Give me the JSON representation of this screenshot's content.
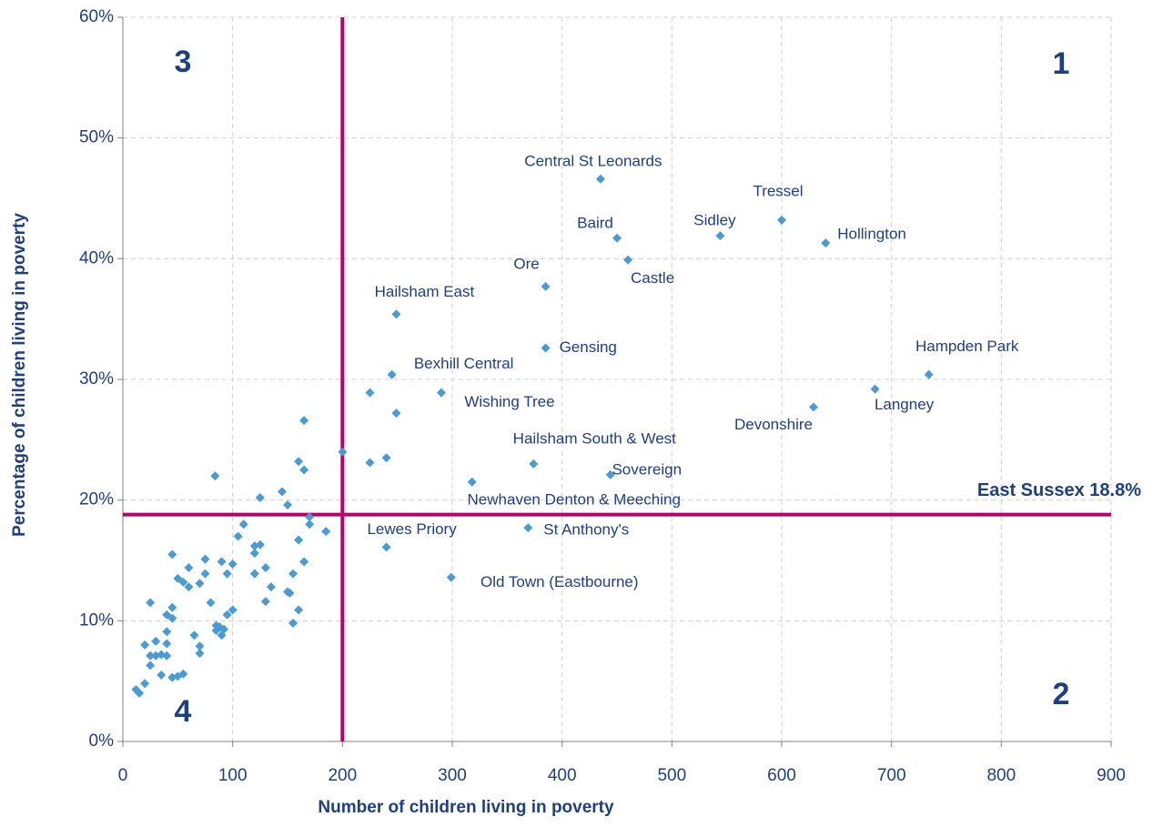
{
  "chart_data": {
    "type": "scatter",
    "x_label": "Number of children living in poverty",
    "y_label": "Percentage of children living in poverty",
    "xlim": [
      0,
      900
    ],
    "xticks": [
      0,
      100,
      200,
      300,
      400,
      500,
      600,
      700,
      800,
      900
    ],
    "ylim": [
      0,
      60
    ],
    "yticks": [
      {
        "value": 0,
        "label": "0%"
      },
      {
        "value": 10,
        "label": "10%"
      },
      {
        "value": 20,
        "label": "20%"
      },
      {
        "value": 30,
        "label": "30%"
      },
      {
        "value": 40,
        "label": "40%"
      },
      {
        "value": 50,
        "label": "50%"
      },
      {
        "value": 60,
        "label": "60%"
      }
    ],
    "grid": true,
    "reference_lines": {
      "horizontal": {
        "value": 18.8,
        "label": "East Sussex 18.8%",
        "color": "#b5006e"
      },
      "vertical": {
        "value": 200,
        "color": "#b5006e"
      }
    },
    "quadrant_labels": {
      "top_right": "1",
      "bottom_right": "2",
      "top_left": "3",
      "bottom_left": "4"
    },
    "series": [
      {
        "color": "#4a9bd4",
        "x": [
          84,
          125,
          145,
          150,
          160,
          165,
          165,
          170,
          170,
          185,
          160,
          165,
          155,
          150,
          152,
          155,
          160,
          130,
          120,
          125,
          120,
          110,
          105,
          130,
          135,
          120,
          100,
          100,
          95,
          95,
          90,
          85,
          85,
          90,
          92,
          80,
          75,
          75,
          70,
          70,
          70,
          65,
          60,
          60,
          55,
          50,
          45,
          45,
          45,
          40,
          40,
          40,
          40,
          35,
          35,
          30,
          30,
          25,
          25,
          25,
          20,
          20,
          15,
          12,
          45,
          50,
          55,
          88,
          200,
          225,
          249,
          225,
          240
        ],
        "values": [
          22,
          20.2,
          20.7,
          19.6,
          23.2,
          22.5,
          26.6,
          18.6,
          18,
          17.4,
          16.7,
          14.9,
          13.9,
          12.4,
          12.3,
          9.8,
          10.9,
          14.4,
          15.6,
          16.3,
          16.2,
          18,
          17,
          11.6,
          12.8,
          13.9,
          14.7,
          10.9,
          10.5,
          13.9,
          14.9,
          9.6,
          9.2,
          8.8,
          9.3,
          11.5,
          15.1,
          13.9,
          13.1,
          7.9,
          7.3,
          8.8,
          14.4,
          12.8,
          13.2,
          13.5,
          15.5,
          11.1,
          10.2,
          10.5,
          9.1,
          8.1,
          7.1,
          7.2,
          5.5,
          7.1,
          8.3,
          11.5,
          7.1,
          6.3,
          8,
          4.8,
          4,
          4.3,
          5.3,
          5.4,
          5.6,
          9.5,
          24,
          28.9,
          27.2,
          23.1,
          23.5
        ]
      },
      {
        "color": "#4a9bd4",
        "labels": [
          "Central St Leonards",
          "Tressel",
          "Sidley",
          "Hollington",
          "Baird",
          "Castle",
          "Ore",
          "Hailsham East",
          "Gensing",
          "Hampden Park",
          "Langney",
          "Devonshire",
          "Bexhill Central",
          "Wishing Tree",
          "Hailsham South & West",
          "Sovereign",
          "Newhaven Denton & Meeching",
          "St Anthony's",
          "Lewes Priory",
          "Old Town (Eastbourne)"
        ],
        "x": [
          435,
          600,
          544,
          640,
          450,
          460,
          385,
          249,
          385,
          734,
          685,
          629,
          245,
          290,
          374,
          444,
          318,
          369,
          240,
          299
        ],
        "values": [
          46.6,
          43.2,
          41.9,
          41.3,
          41.7,
          39.9,
          37.7,
          35.4,
          32.6,
          30.4,
          29.2,
          27.7,
          30.4,
          28.9,
          23,
          22.1,
          21.5,
          17.7,
          16.1,
          13.6
        ]
      }
    ]
  }
}
